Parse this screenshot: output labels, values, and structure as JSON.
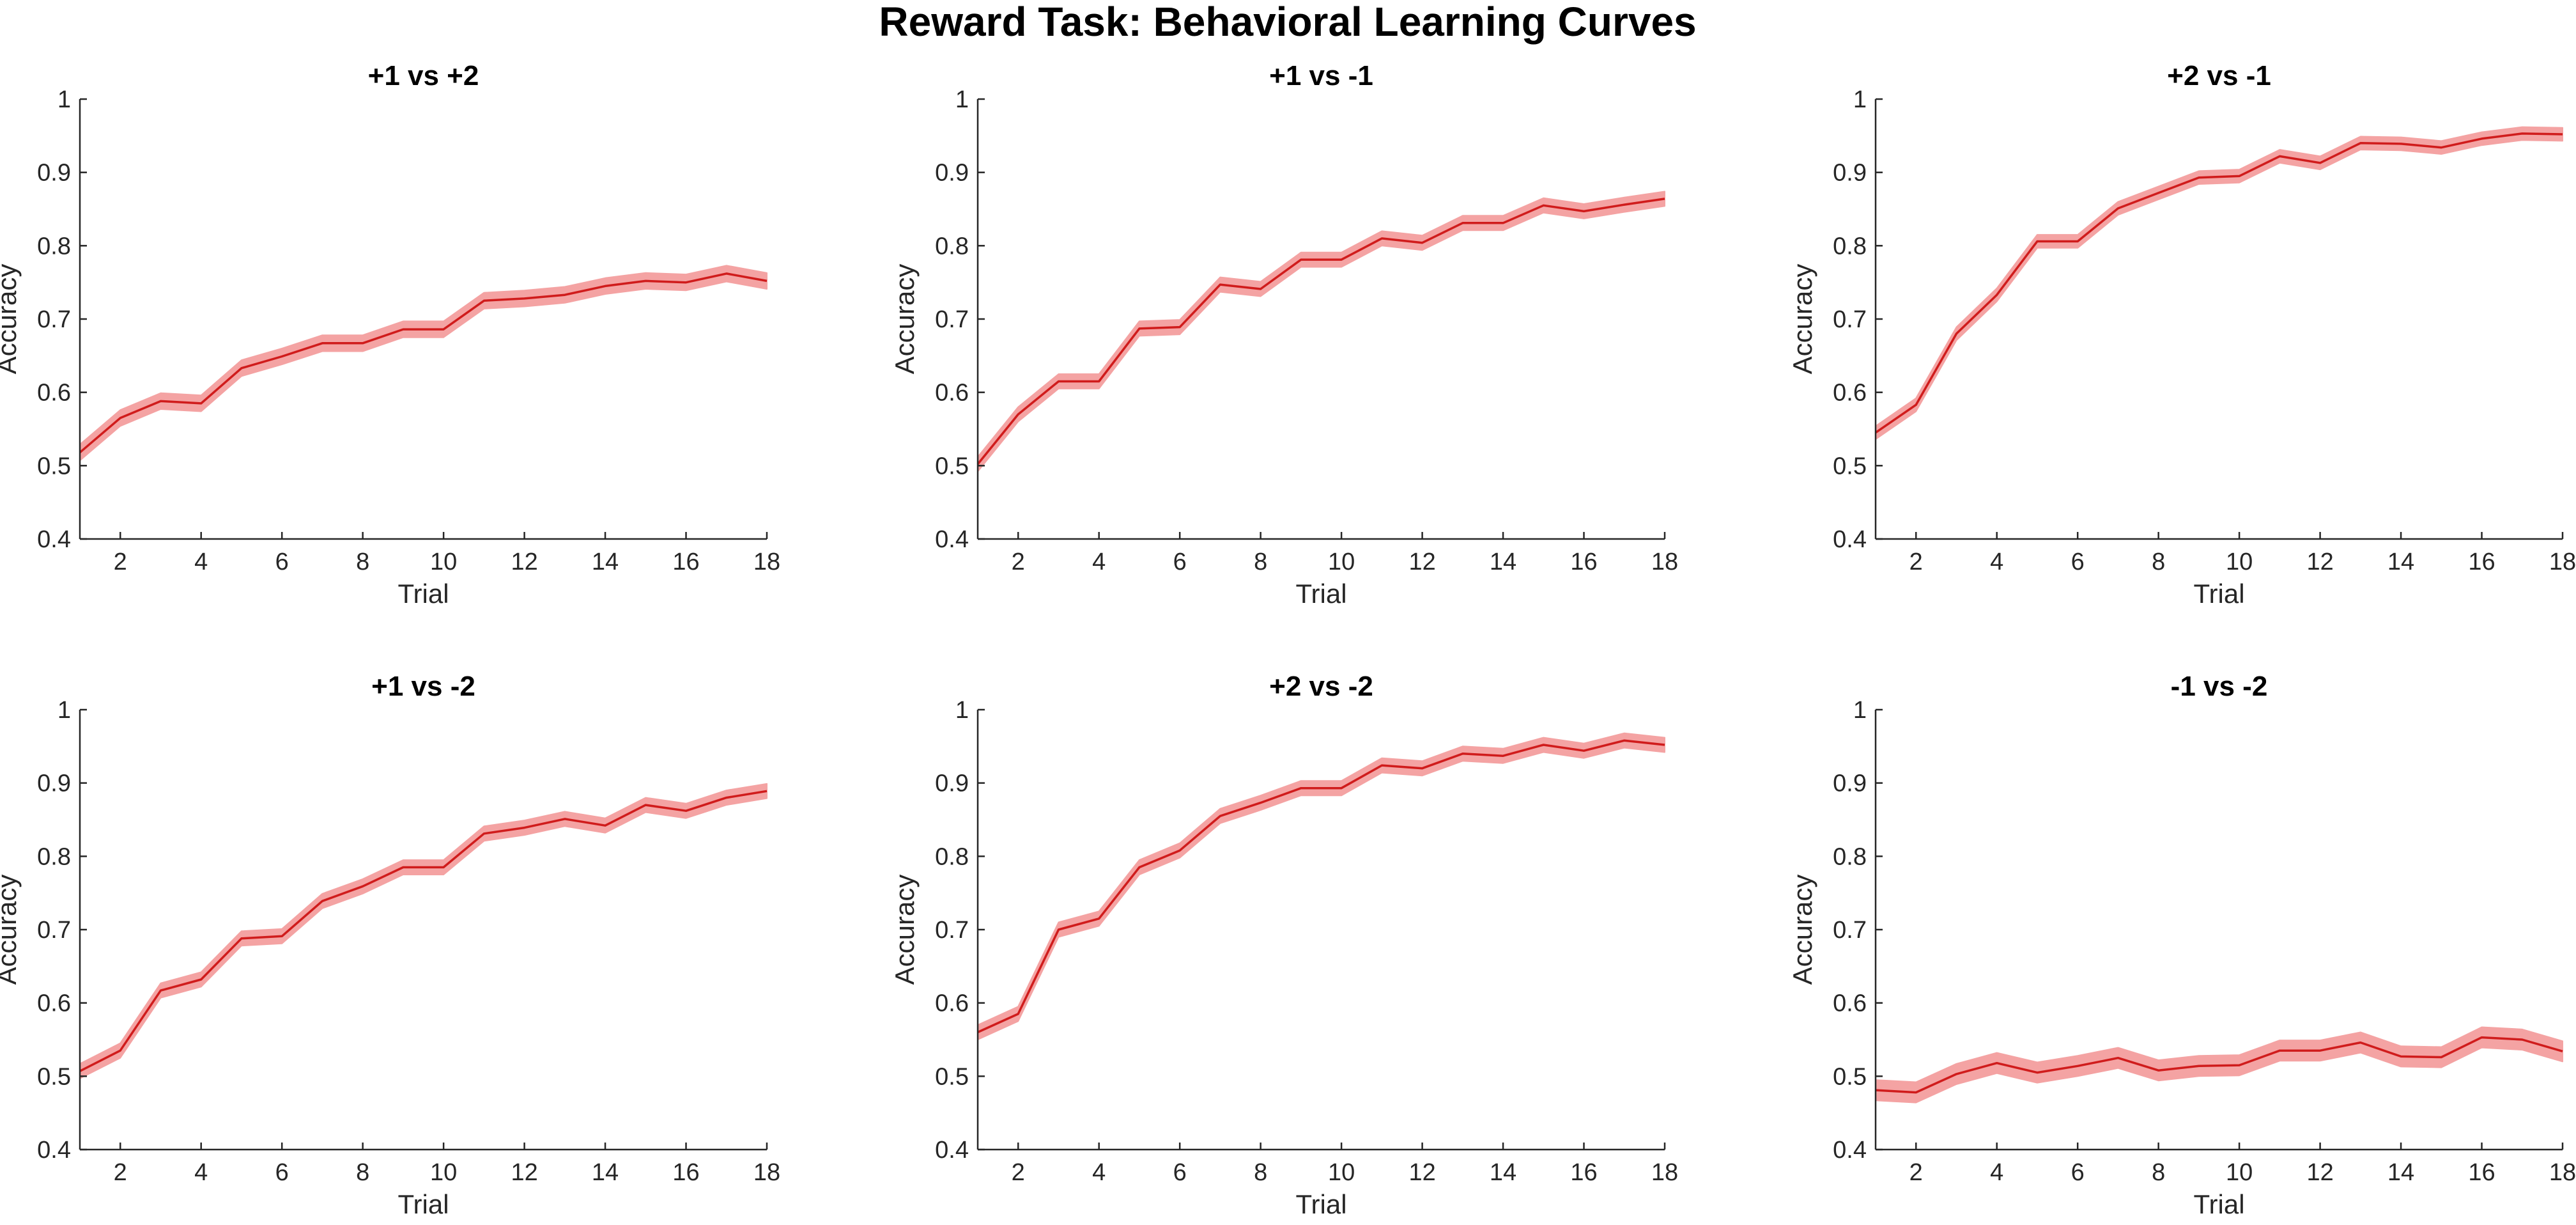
{
  "figure": {
    "title": "Reward Task: Behavioral Learning Curves"
  },
  "colors": {
    "line": "#d01c1c",
    "band": "#f4a3a3",
    "axis": "#262626"
  },
  "chart_data": [
    {
      "type": "line",
      "title": "+1 vs +2",
      "xlabel": "Trial",
      "ylabel": "Accuracy",
      "xlim": [
        1,
        18
      ],
      "ylim": [
        0.4,
        1
      ],
      "xticks": [
        2,
        4,
        6,
        8,
        10,
        12,
        14,
        16,
        18
      ],
      "yticks": [
        0.4,
        0.5,
        0.6,
        0.7,
        0.8,
        0.9,
        1
      ],
      "ytick_labels": [
        "0.4",
        "0.5",
        "0.6",
        "0.7",
        "0.8",
        "0.9",
        "1"
      ],
      "x": [
        1,
        2,
        3,
        4,
        5,
        6,
        7,
        8,
        9,
        10,
        11,
        12,
        13,
        14,
        15,
        16,
        17,
        18
      ],
      "y": [
        0.518,
        0.565,
        0.588,
        0.585,
        0.633,
        0.649,
        0.667,
        0.667,
        0.686,
        0.686,
        0.725,
        0.728,
        0.733,
        0.745,
        0.752,
        0.75,
        0.762,
        0.752
      ],
      "band": 0.011
    },
    {
      "type": "line",
      "title": "+1 vs -1",
      "xlabel": "Trial",
      "ylabel": "Accuracy",
      "xlim": [
        1,
        18
      ],
      "ylim": [
        0.4,
        1
      ],
      "xticks": [
        2,
        4,
        6,
        8,
        10,
        12,
        14,
        16,
        18
      ],
      "yticks": [
        0.4,
        0.5,
        0.6,
        0.7,
        0.8,
        0.9,
        1
      ],
      "ytick_labels": [
        "0.4",
        "0.5",
        "0.6",
        "0.7",
        "0.8",
        "0.9",
        "1"
      ],
      "x": [
        1,
        2,
        3,
        4,
        5,
        6,
        7,
        8,
        9,
        10,
        11,
        12,
        13,
        14,
        15,
        16,
        17,
        18
      ],
      "y": [
        0.502,
        0.57,
        0.615,
        0.615,
        0.687,
        0.689,
        0.747,
        0.741,
        0.781,
        0.781,
        0.81,
        0.804,
        0.831,
        0.831,
        0.855,
        0.847,
        0.856,
        0.864
      ],
      "band": 0.01
    },
    {
      "type": "line",
      "title": "+2 vs -1",
      "xlabel": "Trial",
      "ylabel": "Accuracy",
      "xlim": [
        1,
        18
      ],
      "ylim": [
        0.4,
        1
      ],
      "xticks": [
        2,
        4,
        6,
        8,
        10,
        12,
        14,
        16,
        18
      ],
      "yticks": [
        0.4,
        0.5,
        0.6,
        0.7,
        0.8,
        0.9,
        1
      ],
      "ytick_labels": [
        "0.4",
        "0.5",
        "0.6",
        "0.7",
        "0.8",
        "0.9",
        "1"
      ],
      "x": [
        1,
        2,
        3,
        4,
        5,
        6,
        7,
        8,
        9,
        10,
        11,
        12,
        13,
        14,
        15,
        16,
        17,
        18
      ],
      "y": [
        0.545,
        0.583,
        0.68,
        0.733,
        0.806,
        0.806,
        0.851,
        0.872,
        0.893,
        0.895,
        0.922,
        0.913,
        0.94,
        0.939,
        0.934,
        0.946,
        0.953,
        0.952
      ],
      "band": 0.009
    },
    {
      "type": "line",
      "title": "+1 vs -2",
      "xlabel": "Trial",
      "ylabel": "Accuracy",
      "xlim": [
        1,
        18
      ],
      "ylim": [
        0.4,
        1
      ],
      "xticks": [
        2,
        4,
        6,
        8,
        10,
        12,
        14,
        16,
        18
      ],
      "yticks": [
        0.4,
        0.5,
        0.6,
        0.7,
        0.8,
        0.9,
        1
      ],
      "ytick_labels": [
        "0.4",
        "0.5",
        "0.6",
        "0.7",
        "0.8",
        "0.9",
        "1"
      ],
      "x": [
        1,
        2,
        3,
        4,
        5,
        6,
        7,
        8,
        9,
        10,
        11,
        12,
        13,
        14,
        15,
        16,
        17,
        18
      ],
      "y": [
        0.507,
        0.535,
        0.617,
        0.632,
        0.688,
        0.691,
        0.739,
        0.759,
        0.785,
        0.785,
        0.831,
        0.839,
        0.851,
        0.842,
        0.87,
        0.862,
        0.88,
        0.889
      ],
      "band": 0.01
    },
    {
      "type": "line",
      "title": "+2 vs -2",
      "xlabel": "Trial",
      "ylabel": "Accuracy",
      "xlim": [
        1,
        18
      ],
      "ylim": [
        0.4,
        1
      ],
      "xticks": [
        2,
        4,
        6,
        8,
        10,
        12,
        14,
        16,
        18
      ],
      "yticks": [
        0.4,
        0.5,
        0.6,
        0.7,
        0.8,
        0.9,
        1
      ],
      "ytick_labels": [
        "0.4",
        "0.5",
        "0.6",
        "0.7",
        "0.8",
        "0.9",
        "1"
      ],
      "x": [
        1,
        2,
        3,
        4,
        5,
        6,
        7,
        8,
        9,
        10,
        11,
        12,
        13,
        14,
        15,
        16,
        17,
        18
      ],
      "y": [
        0.56,
        0.585,
        0.7,
        0.715,
        0.785,
        0.808,
        0.855,
        0.873,
        0.893,
        0.893,
        0.924,
        0.92,
        0.94,
        0.937,
        0.952,
        0.944,
        0.958,
        0.952
      ],
      "band": 0.01
    },
    {
      "type": "line",
      "title": "-1 vs -2",
      "xlabel": "Trial",
      "ylabel": "Accuracy",
      "xlim": [
        1,
        18
      ],
      "ylim": [
        0.4,
        1
      ],
      "xticks": [
        2,
        4,
        6,
        8,
        10,
        12,
        14,
        16,
        18
      ],
      "yticks": [
        0.4,
        0.5,
        0.6,
        0.7,
        0.8,
        0.9,
        1
      ],
      "ytick_labels": [
        "0.4",
        "0.5",
        "0.6",
        "0.7",
        "0.8",
        "0.9",
        "1"
      ],
      "x": [
        1,
        2,
        3,
        4,
        5,
        6,
        7,
        8,
        9,
        10,
        11,
        12,
        13,
        14,
        15,
        16,
        17,
        18
      ],
      "y": [
        0.481,
        0.478,
        0.503,
        0.518,
        0.505,
        0.514,
        0.525,
        0.508,
        0.514,
        0.515,
        0.535,
        0.535,
        0.546,
        0.527,
        0.526,
        0.553,
        0.55,
        0.534
      ],
      "band": 0.014
    }
  ]
}
